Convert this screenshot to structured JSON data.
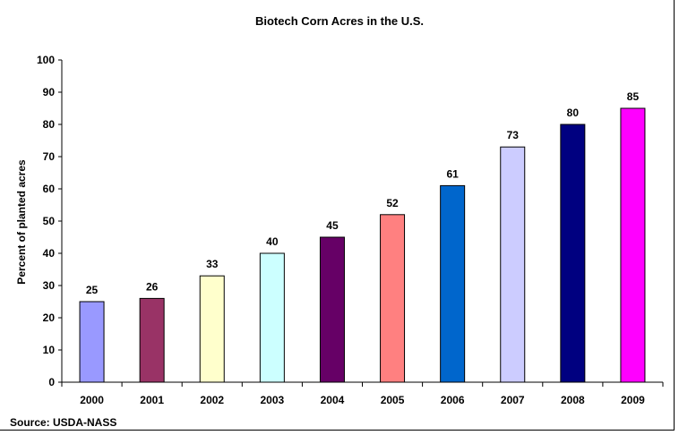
{
  "chart_data": {
    "type": "bar",
    "title": "Biotech Corn Acres in the U.S.",
    "xlabel": "",
    "ylabel": "Percent of planted acres",
    "categories": [
      "2000",
      "2001",
      "2002",
      "2003",
      "2004",
      "2005",
      "2006",
      "2007",
      "2008",
      "2009"
    ],
    "values": [
      25,
      26,
      33,
      40,
      45,
      52,
      61,
      73,
      80,
      85
    ],
    "colors": [
      "#9999FF",
      "#993366",
      "#FFFFCC",
      "#CCFFFF",
      "#660066",
      "#FF8080",
      "#0066CC",
      "#CCCCFF",
      "#000080",
      "#FF00FF"
    ],
    "ylim": [
      0,
      100
    ],
    "yticks": [
      0,
      10,
      20,
      30,
      40,
      50,
      60,
      70,
      80,
      90,
      100
    ],
    "grid": false,
    "legend": "none",
    "source": "Source: USDA-NASS"
  }
}
